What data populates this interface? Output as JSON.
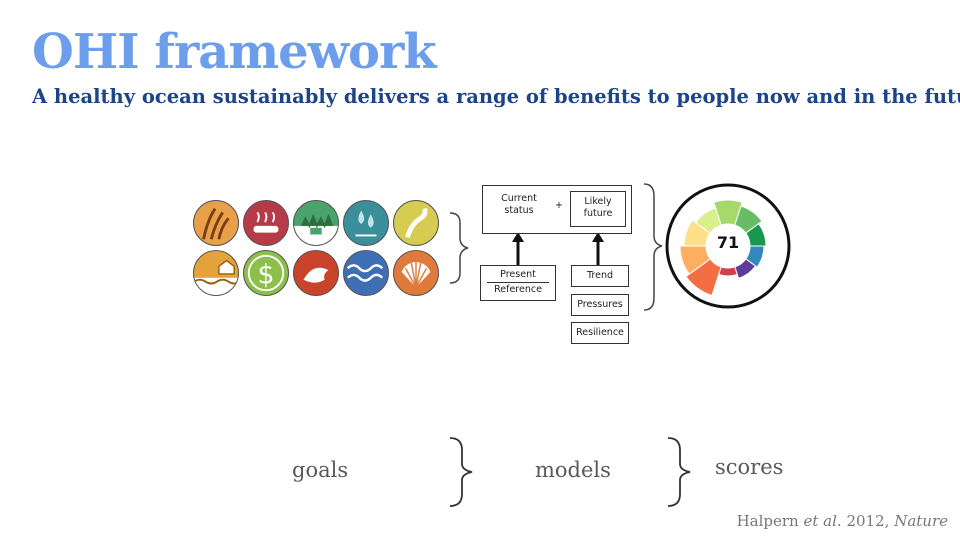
{
  "slide": {
    "title": "OHI framework",
    "subtitle": "A healthy ocean sustainably delivers a range of benefits to people now and in the future."
  },
  "goal_icons": [
    {
      "name": "food-provision-icon",
      "color": "#e8a04a"
    },
    {
      "name": "artisanal-fishing-icon",
      "color": "#b63a48"
    },
    {
      "name": "natural-products-icon",
      "color": "#4aa36b"
    },
    {
      "name": "carbon-storage-icon",
      "color": "#3a8f9a"
    },
    {
      "name": "coastal-protection-icon",
      "color": "#d6cc52"
    },
    {
      "name": "livelihoods-icon",
      "color": "#e3a23a"
    },
    {
      "name": "economies-icon",
      "color": "#8cc04a"
    },
    {
      "name": "tourism-icon",
      "color": "#c9442a"
    },
    {
      "name": "clean-waters-icon",
      "color": "#3e6fb5"
    },
    {
      "name": "biodiversity-icon",
      "color": "#e07a3a"
    }
  ],
  "model": {
    "current_status": "Current status",
    "plus": "+",
    "likely_future": "Likely future",
    "present": "Present",
    "reference": "Reference",
    "trend": "Trend",
    "pressures": "Pressures",
    "resilience": "Resilience"
  },
  "score": {
    "value": "71",
    "petal_colors": [
      "#f46d43",
      "#fdae61",
      "#fee08b",
      "#d9ef8b",
      "#a6d96a",
      "#66bd63",
      "#1a9850",
      "#3288bd",
      "#5e3c99",
      "#d53e4f"
    ]
  },
  "labels": {
    "goals": "goals",
    "models": "models",
    "scores": "scores"
  },
  "credit": {
    "author": "Halpern",
    "etal": "et al.",
    "year": "2012,",
    "journal": "Nature"
  }
}
